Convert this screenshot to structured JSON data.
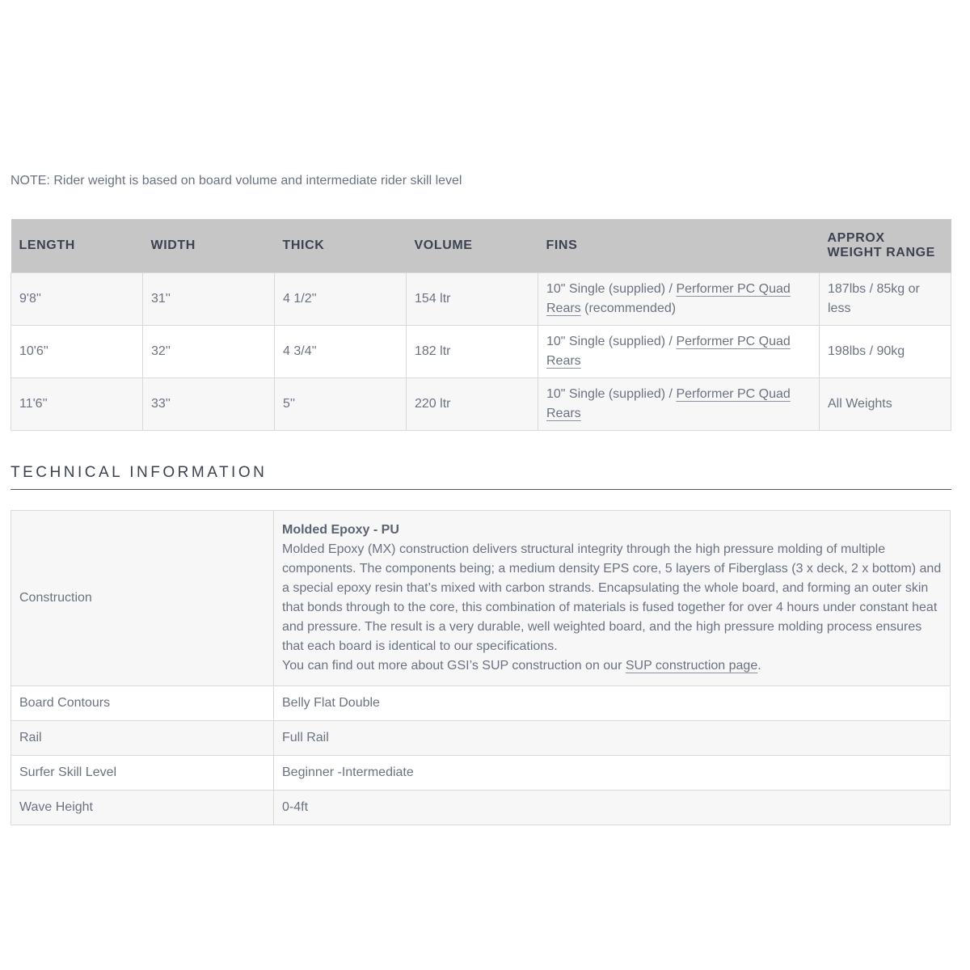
{
  "note": "NOTE: Rider weight is based on board volume and intermediate rider skill level",
  "spec_table": {
    "headers": {
      "length": "LENGTH",
      "width": "WIDTH",
      "thick": "THICK",
      "volume": "VOLUME",
      "fins": "FINS",
      "weight": "APPROX WEIGHT RANGE"
    },
    "rows": [
      {
        "length": "9'8''",
        "width": "31''",
        "thick": "4 1/2''",
        "volume": "154 ltr",
        "fins_prefix": "10\" Single (supplied) / ",
        "fins_link": "Performer PC Quad Rears",
        "fins_suffix": " (recommended)",
        "weight": "187lbs / 85kg or less"
      },
      {
        "length": "10'6''",
        "width": "32''",
        "thick": "4 3/4''",
        "volume": "182 ltr",
        "fins_prefix": "10\" Single (supplied) / ",
        "fins_link": "Performer PC Quad Rears",
        "fins_suffix": "",
        "weight": "198lbs / 90kg"
      },
      {
        "length": "11'6''",
        "width": "33''",
        "thick": "5''",
        "volume": "220 ltr",
        "fins_prefix": "10\" Single (supplied) / ",
        "fins_link": "Performer PC Quad Rears",
        "fins_suffix": "",
        "weight": "All Weights"
      }
    ]
  },
  "section_title": "TECHNICAL INFORMATION",
  "tech_table": {
    "construction": {
      "label": "Construction",
      "heading": "Molded Epoxy - PU",
      "body": "Molded Epoxy (MX) construction delivers structural integrity through the high pressure molding of multiple components. The components being; a medium density EPS core, 5 layers of Fiberglass (3 x deck, 2 x bottom) and a special epoxy resin that’s mixed with carbon strands. Encapsulating the whole board, and forming an outer skin that bonds through to the core, this combination of materials is fused together for over 4 hours under constant heat and pressure. The result is a very durable, well weighted board, and the high pressure molding process ensures that each board is identical to our specifications.",
      "link_prefix": "You can find out more about GSI’s SUP construction on our ",
      "link_text": "SUP construction page",
      "link_suffix": "."
    },
    "rows": [
      {
        "label": "Board Contours",
        "value": "Belly Flat Double"
      },
      {
        "label": "Rail",
        "value": "Full Rail"
      },
      {
        "label": "Surfer Skill Level",
        "value": "Beginner -Intermediate"
      },
      {
        "label": "Wave Height",
        "value": "0-4ft"
      }
    ]
  },
  "colors": {
    "header_bg": "#c6c6c6",
    "header_text": "#3d4250",
    "body_text": "#6b7280",
    "row_alt_bg": "#f7f7f8",
    "border": "#d9d9d9",
    "heading_rule": "#565b65"
  }
}
